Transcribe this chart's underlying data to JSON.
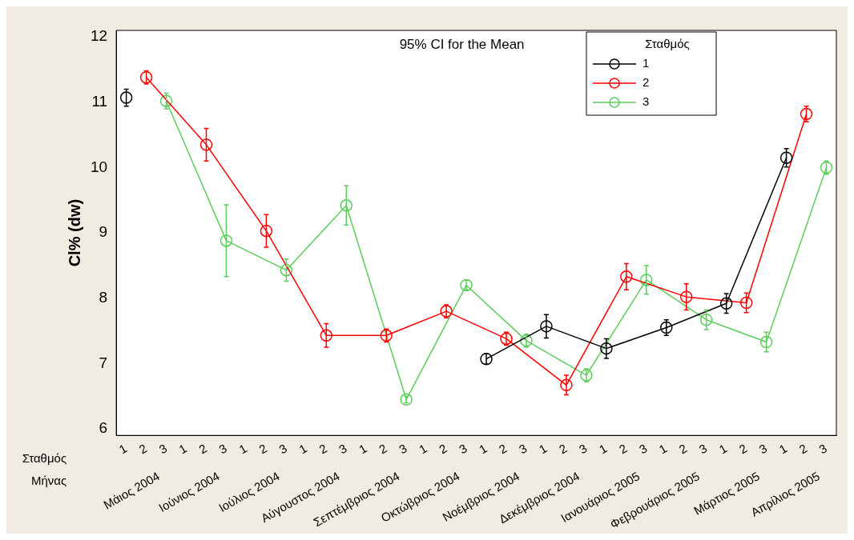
{
  "chart_data": {
    "type": "line",
    "ylabel": "Cl% (dw)",
    "legend_title": "Σταθμός",
    "xlabel": "Μήνας",
    "annotations": [
      "95% CI for the Mean",
      "Σταθμός",
      "Μάιος 2004",
      "Ιούνιος 2004",
      "Ιούλιος 2004",
      "Αύγουστος 2004",
      "Σεπτέμβριος 2004",
      "Οκτώβριος 2004",
      "Νοέμβριος 2004",
      "Δεκέμβριος 2004",
      "Ιανουάριος 2005",
      "Φεβρουάριος 2005",
      "Μάρτιος 2005",
      "Απρίλιος 2005"
    ],
    "categories": [
      "1",
      "2",
      "3",
      "1",
      "2",
      "3",
      "1",
      "2",
      "3",
      "1",
      "2",
      "3",
      "1",
      "2",
      "3",
      "1",
      "2",
      "3",
      "1",
      "2",
      "3",
      "1",
      "2",
      "3",
      "1",
      "2",
      "3",
      "1",
      "2",
      "3",
      "1",
      "2",
      "3",
      "1",
      "2",
      "3"
    ],
    "series": [
      {
        "name": "1",
        "color": "#000000",
        "values": [
          11.07,
          null,
          null,
          null,
          null,
          null,
          null,
          null,
          null,
          null,
          null,
          null,
          null,
          null,
          null,
          null,
          null,
          null,
          7.07,
          null,
          null,
          7.57,
          null,
          null,
          7.23,
          null,
          null,
          7.55,
          null,
          null,
          7.92,
          null,
          null,
          10.15,
          null,
          null
        ],
        "errors": [
          0.13,
          null,
          null,
          null,
          null,
          null,
          null,
          null,
          null,
          null,
          null,
          null,
          null,
          null,
          null,
          null,
          null,
          null,
          0.08,
          null,
          null,
          0.18,
          null,
          null,
          0.15,
          null,
          null,
          0.12,
          null,
          null,
          0.15,
          null,
          null,
          0.14,
          null,
          null
        ]
      },
      {
        "name": "2",
        "color": "#ff0000",
        "values": [
          null,
          11.38,
          null,
          null,
          10.35,
          null,
          null,
          9.03,
          null,
          null,
          7.43,
          null,
          null,
          7.43,
          null,
          null,
          7.8,
          null,
          null,
          7.38,
          null,
          null,
          6.67,
          null,
          null,
          8.33,
          null,
          null,
          8.02,
          null,
          null,
          7.93,
          null,
          null,
          10.82,
          null
        ],
        "errors": [
          null,
          0.1,
          null,
          null,
          0.25,
          null,
          null,
          0.25,
          null,
          null,
          0.18,
          null,
          null,
          0.1,
          null,
          null,
          0.1,
          null,
          null,
          0.1,
          null,
          null,
          0.15,
          null,
          null,
          0.2,
          null,
          null,
          0.2,
          null,
          null,
          0.15,
          null,
          null,
          0.12,
          null
        ]
      },
      {
        "name": "3",
        "color": "#5ccc5c",
        "values": [
          null,
          null,
          11.02,
          null,
          null,
          8.88,
          null,
          null,
          8.43,
          null,
          null,
          9.42,
          null,
          null,
          6.45,
          null,
          null,
          8.2,
          null,
          null,
          7.35,
          null,
          null,
          6.82,
          null,
          null,
          8.28,
          null,
          null,
          7.67,
          null,
          null,
          7.33,
          null,
          null,
          10.0
        ],
        "errors": [
          null,
          null,
          0.12,
          null,
          null,
          0.55,
          null,
          null,
          0.17,
          null,
          null,
          0.3,
          null,
          null,
          0.05,
          null,
          null,
          0.08,
          null,
          null,
          0.1,
          null,
          null,
          0.1,
          null,
          null,
          0.22,
          null,
          null,
          0.15,
          null,
          null,
          0.15,
          null,
          null,
          0.1
        ]
      }
    ],
    "ylim": [
      5.9,
      12.1
    ],
    "yticks": [
      6,
      7,
      8,
      9,
      10,
      11,
      12
    ],
    "grid": false,
    "legend": "top right",
    "marker": "circle",
    "line_style": "solid"
  }
}
